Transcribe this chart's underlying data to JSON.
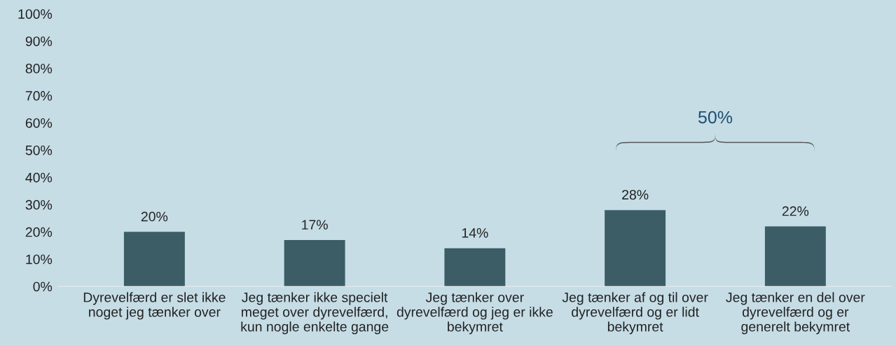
{
  "chart_data": {
    "type": "bar",
    "categories": [
      "Dyrevelfærd er slet ikke\nnoget jeg tænker over",
      "Jeg tænker ikke specielt\nmeget over dyrevelfærd,\nkun nogle enkelte gange",
      "Jeg tænker over\ndyrevelfærd og jeg er ikke\nbekymret",
      "Jeg tænker af og til over\ndyrevelfærd og er lidt\nbekymret",
      "Jeg tænker en del over\ndyrevelfærd og er\ngenerelt bekymret"
    ],
    "values": [
      20,
      17,
      14,
      28,
      22
    ],
    "value_labels": [
      "20%",
      "17%",
      "14%",
      "28%",
      "22%"
    ],
    "color": "#3c5d66",
    "ylim": [
      0,
      100
    ],
    "yticks": [
      {
        "value": 0,
        "label": "0%"
      },
      {
        "value": 10,
        "label": "10%"
      },
      {
        "value": 20,
        "label": "20%"
      },
      {
        "value": 30,
        "label": "30%"
      },
      {
        "value": 40,
        "label": "40%"
      },
      {
        "value": 50,
        "label": "50%"
      },
      {
        "value": 60,
        "label": "60%"
      },
      {
        "value": 70,
        "label": "70%"
      },
      {
        "value": 80,
        "label": "80%"
      },
      {
        "value": 90,
        "label": "90%"
      },
      {
        "value": 100,
        "label": "100%"
      }
    ],
    "annotations": [
      "50%"
    ],
    "grid": false
  }
}
